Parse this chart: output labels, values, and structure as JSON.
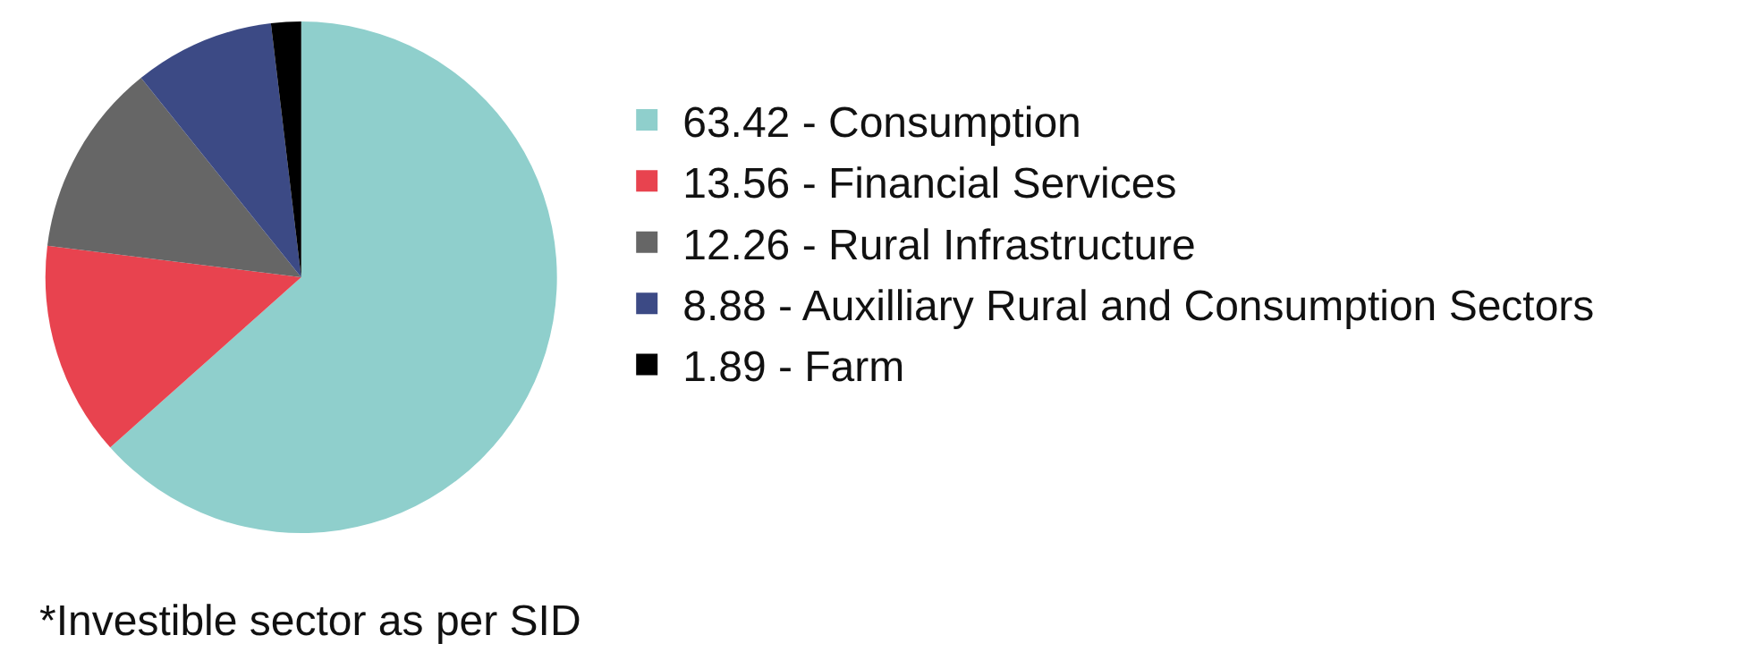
{
  "chart_data": {
    "type": "pie",
    "categories": [
      "63.42 - Consumption",
      "13.56 - Financial Services",
      "12.26 - Rural Infrastructure",
      "8.88 - Auxilliary Rural and Consumption Sectors",
      "1.89 - Farm"
    ],
    "values": [
      63.42,
      13.56,
      12.26,
      8.88,
      1.89
    ],
    "colors": [
      "#8fcfcc",
      "#e8434f",
      "#666666",
      "#3c4a85",
      "#000000"
    ],
    "legend": "right",
    "annotations": [
      "*Investible sector as per SID"
    ]
  }
}
